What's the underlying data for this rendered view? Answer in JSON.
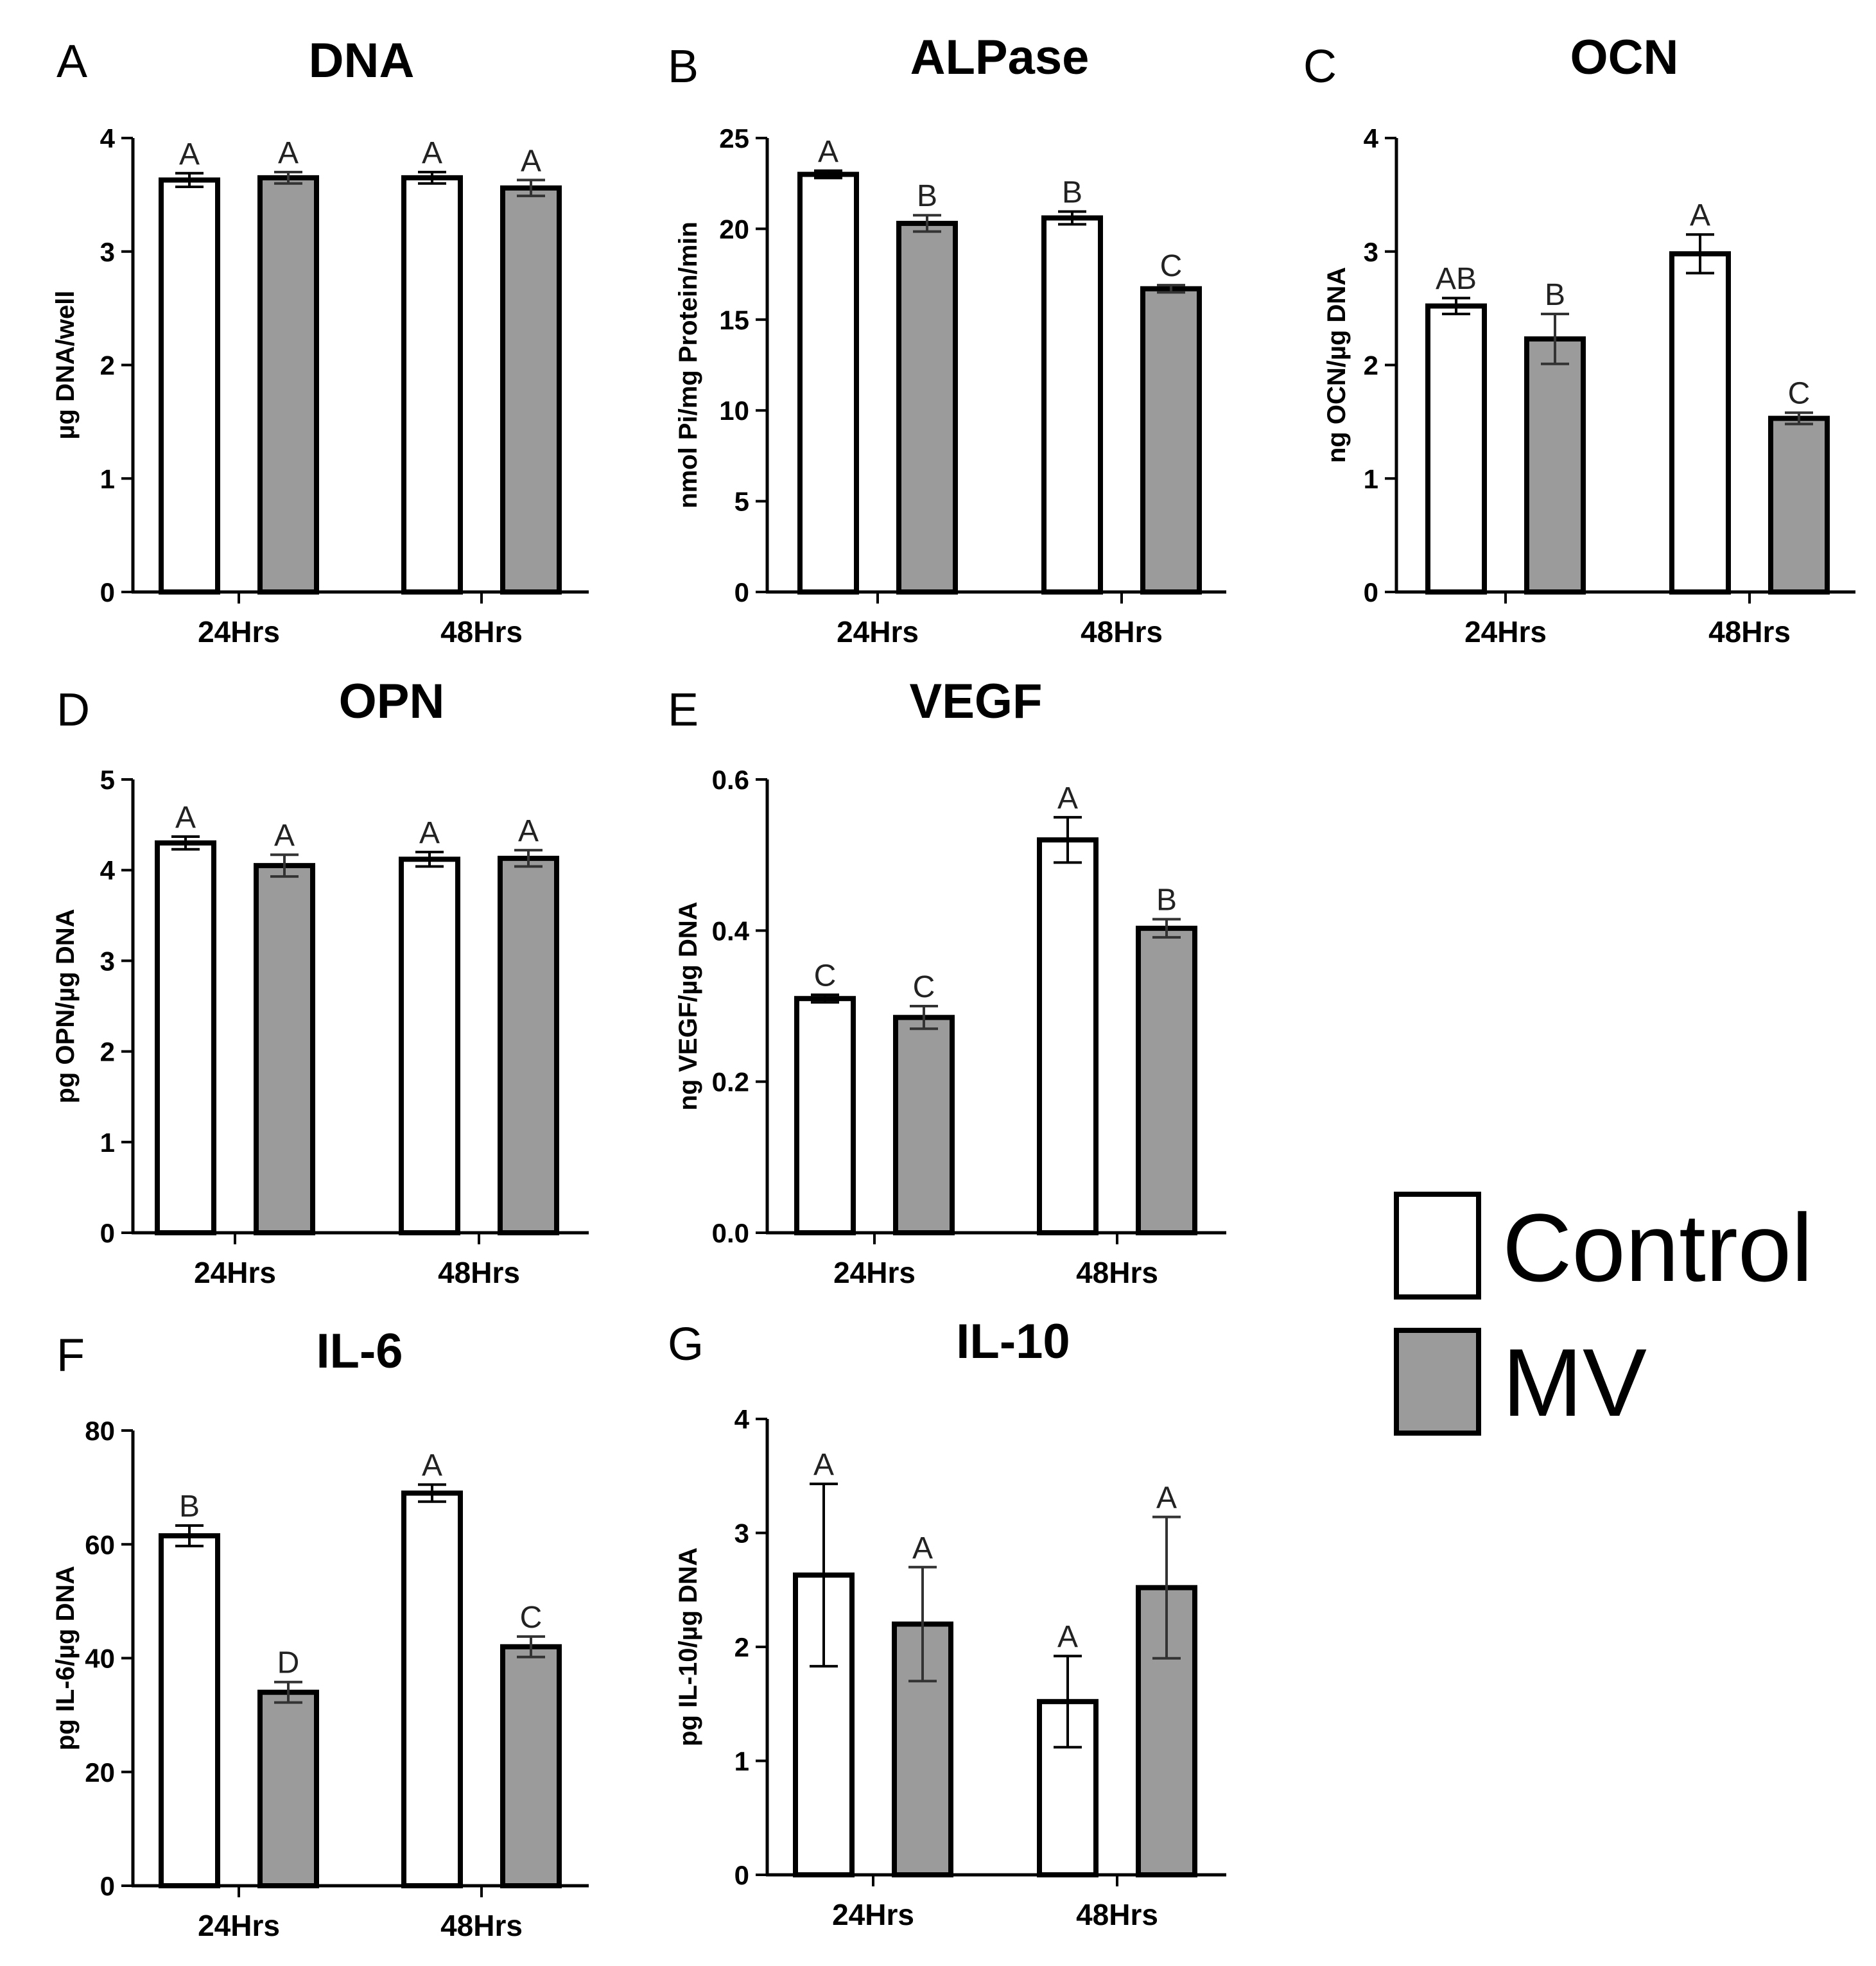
{
  "colors": {
    "control": "#ffffff",
    "mv": "#9b9b9b",
    "stroke": "#000000",
    "error_mv": "#333333"
  },
  "legend": [
    {
      "label": "Control",
      "color": "#ffffff"
    },
    {
      "label": "MV",
      "color": "#9b9b9b"
    }
  ],
  "chart_data": [
    {
      "panel": "A",
      "title": "DNA",
      "type": "bar",
      "ylabel": "µg DNA/well",
      "ylim": [
        0,
        4
      ],
      "yticks": [
        0,
        1,
        2,
        3,
        4
      ],
      "ytick_labels": [
        "0",
        "1",
        "2",
        "3",
        "4"
      ],
      "categories": [
        "24Hrs",
        "48Hrs"
      ],
      "series": [
        {
          "name": "Control",
          "values": [
            3.63,
            3.65
          ],
          "errors": [
            0.06,
            0.05
          ],
          "letters": [
            "A",
            "A"
          ]
        },
        {
          "name": "MV",
          "values": [
            3.65,
            3.56
          ],
          "errors": [
            0.05,
            0.07
          ],
          "letters": [
            "A",
            "A"
          ]
        }
      ]
    },
    {
      "panel": "B",
      "title": "ALPase",
      "type": "bar",
      "ylabel": "nmol Pi/mg Protein/min",
      "ylim": [
        0,
        25
      ],
      "yticks": [
        0,
        5,
        10,
        15,
        20,
        25
      ],
      "ytick_labels": [
        "0",
        "5",
        "10",
        "15",
        "20",
        "25"
      ],
      "categories": [
        "24Hrs",
        "48Hrs"
      ],
      "series": [
        {
          "name": "Control",
          "values": [
            23.0,
            20.6
          ],
          "errors": [
            0.2,
            0.35
          ],
          "letters": [
            "A",
            "B"
          ]
        },
        {
          "name": "MV",
          "values": [
            20.3,
            16.7
          ],
          "errors": [
            0.45,
            0.2
          ],
          "letters": [
            "B",
            "C"
          ]
        }
      ]
    },
    {
      "panel": "C",
      "title": "OCN",
      "type": "bar",
      "ylabel": "ng OCN/µg DNA",
      "ylim": [
        0,
        4
      ],
      "yticks": [
        0,
        1,
        2,
        3,
        4
      ],
      "ytick_labels": [
        "0",
        "1",
        "2",
        "3",
        "4"
      ],
      "categories": [
        "24Hrs",
        "48Hrs"
      ],
      "series": [
        {
          "name": "Control",
          "values": [
            2.52,
            2.98
          ],
          "errors": [
            0.07,
            0.17
          ],
          "letters": [
            "AB",
            "A"
          ]
        },
        {
          "name": "MV",
          "values": [
            2.23,
            1.53
          ],
          "errors": [
            0.22,
            0.05
          ],
          "letters": [
            "B",
            "C"
          ]
        }
      ]
    },
    {
      "panel": "D",
      "title": "OPN",
      "type": "bar",
      "ylabel": "pg OPN/µg DNA",
      "ylim": [
        0,
        5
      ],
      "yticks": [
        0,
        1,
        2,
        3,
        4,
        5
      ],
      "ytick_labels": [
        "0",
        "1",
        "2",
        "3",
        "4",
        "5"
      ],
      "categories": [
        "24Hrs",
        "48Hrs"
      ],
      "series": [
        {
          "name": "Control",
          "values": [
            4.3,
            4.12
          ],
          "errors": [
            0.07,
            0.08
          ],
          "letters": [
            "A",
            "A"
          ]
        },
        {
          "name": "MV",
          "values": [
            4.05,
            4.13
          ],
          "errors": [
            0.12,
            0.09
          ],
          "letters": [
            "A",
            "A"
          ]
        }
      ]
    },
    {
      "panel": "E",
      "title": "VEGF",
      "type": "bar",
      "ylabel": "ng VEGF/µg DNA",
      "ylim": [
        0,
        0.6
      ],
      "yticks": [
        0,
        0.2,
        0.4,
        0.6
      ],
      "ytick_labels": [
        "0.0",
        "0.2",
        "0.4",
        "0.6"
      ],
      "categories": [
        "24Hrs",
        "48Hrs"
      ],
      "series": [
        {
          "name": "Control",
          "values": [
            0.31,
            0.52
          ],
          "errors": [
            0.005,
            0.03
          ],
          "letters": [
            "C",
            "A"
          ]
        },
        {
          "name": "MV",
          "values": [
            0.285,
            0.403
          ],
          "errors": [
            0.015,
            0.012
          ],
          "letters": [
            "C",
            "B"
          ]
        }
      ]
    },
    {
      "panel": "F",
      "title": "IL-6",
      "type": "bar",
      "ylabel": "pg IL-6/µg DNA",
      "ylim": [
        0,
        80
      ],
      "yticks": [
        0,
        20,
        40,
        60,
        80
      ],
      "ytick_labels": [
        "0",
        "20",
        "40",
        "60",
        "80"
      ],
      "categories": [
        "24Hrs",
        "48Hrs"
      ],
      "series": [
        {
          "name": "Control",
          "values": [
            61.5,
            69.0
          ],
          "errors": [
            1.8,
            1.5
          ],
          "letters": [
            "B",
            "A"
          ]
        },
        {
          "name": "MV",
          "values": [
            34.0,
            42.0
          ],
          "errors": [
            1.8,
            1.8
          ],
          "letters": [
            "D",
            "C"
          ]
        }
      ]
    },
    {
      "panel": "G",
      "title": "IL-10",
      "type": "bar",
      "ylabel": "pg IL-10/µg DNA",
      "ylim": [
        0,
        4
      ],
      "yticks": [
        0,
        1,
        2,
        3,
        4
      ],
      "ytick_labels": [
        "0",
        "1",
        "2",
        "3",
        "4"
      ],
      "categories": [
        "24Hrs",
        "48Hrs"
      ],
      "series": [
        {
          "name": "Control",
          "values": [
            2.63,
            1.52
          ],
          "errors": [
            0.8,
            0.4
          ],
          "letters": [
            "A",
            "A"
          ]
        },
        {
          "name": "MV",
          "values": [
            2.2,
            2.52
          ],
          "errors": [
            0.5,
            0.62
          ],
          "letters": [
            "A",
            "A"
          ]
        }
      ]
    }
  ]
}
